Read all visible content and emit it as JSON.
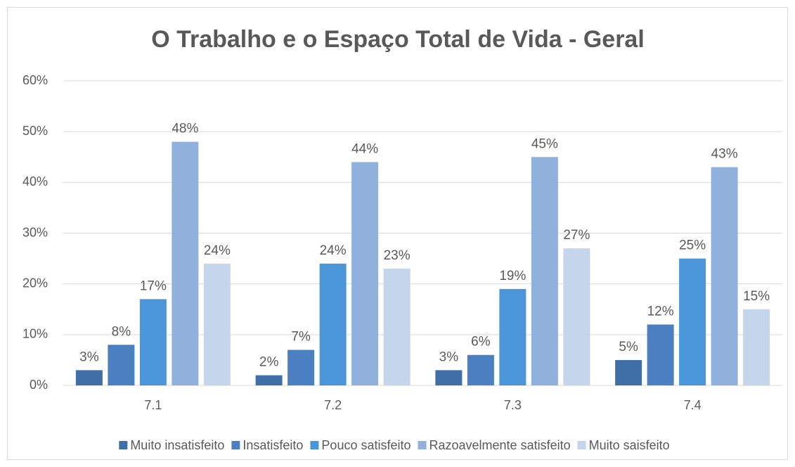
{
  "chart_data": {
    "type": "bar",
    "title": "O Trabalho e o Espaço Total  de Vida - Geral",
    "categories": [
      "7.1",
      "7.2",
      "7.3",
      "7.4"
    ],
    "series": [
      {
        "name": "Muito insatisfeito",
        "color": "#3f6fa6",
        "values": [
          3,
          2,
          3,
          5
        ],
        "value_labels": [
          "3%",
          "2%",
          "3%",
          "5%"
        ]
      },
      {
        "name": "Insatisfeito",
        "color": "#4a80c1",
        "values": [
          8,
          7,
          6,
          12
        ],
        "value_labels": [
          "8%",
          "7%",
          "6%",
          "12%"
        ]
      },
      {
        "name": "Pouco satisfeito",
        "color": "#4b96d9",
        "values": [
          17,
          24,
          19,
          25
        ],
        "value_labels": [
          "17%",
          "24%",
          "19%",
          "25%"
        ]
      },
      {
        "name": "Razoavelmente satisfeito",
        "color": "#8fb1dc",
        "values": [
          48,
          44,
          45,
          43
        ],
        "value_labels": [
          "48%",
          "44%",
          "45%",
          "43%"
        ]
      },
      {
        "name": "Muito saisfeito",
        "color": "#c4d5ec",
        "values": [
          24,
          23,
          27,
          15
        ],
        "value_labels": [
          "24%",
          "23%",
          "27%",
          "15%"
        ]
      }
    ],
    "ylim": [
      0,
      60
    ],
    "yticks": [
      {
        "value": 0,
        "label": "0%"
      },
      {
        "value": 10,
        "label": "10%"
      },
      {
        "value": 20,
        "label": "20%"
      },
      {
        "value": 30,
        "label": "30%"
      },
      {
        "value": 40,
        "label": "40%"
      },
      {
        "value": 50,
        "label": "50%"
      },
      {
        "value": 60,
        "label": "60%"
      }
    ],
    "grid": true,
    "legend": "bottom"
  }
}
